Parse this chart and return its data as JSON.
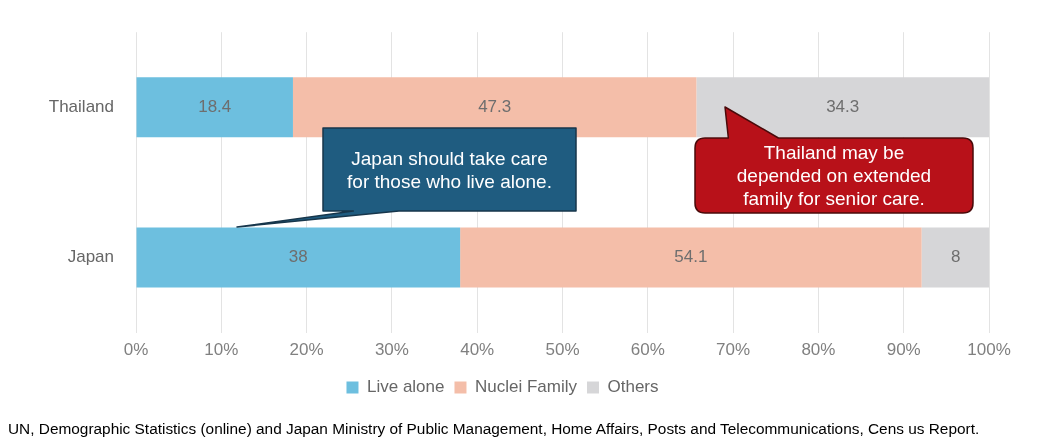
{
  "chart_data": {
    "type": "bar",
    "orientation": "horizontal",
    "stacked": true,
    "categories": [
      "Thailand",
      "Japan"
    ],
    "series": [
      {
        "name": "Live alone",
        "color": "#6dbfdf",
        "values": [
          18.4,
          38
        ]
      },
      {
        "name": "Nuclei Family",
        "color": "#f4bea9",
        "values": [
          47.3,
          54.1
        ]
      },
      {
        "name": "Others",
        "color": "#d6d6d8",
        "values": [
          34.3,
          8
        ]
      }
    ],
    "xlim": [
      0,
      100
    ],
    "xticks": [
      {
        "value": 0,
        "label": "0%"
      },
      {
        "value": 10,
        "label": "10%"
      },
      {
        "value": 20,
        "label": "20%"
      },
      {
        "value": 30,
        "label": "30%"
      },
      {
        "value": 40,
        "label": "40%"
      },
      {
        "value": 50,
        "label": "50%"
      },
      {
        "value": 60,
        "label": "60%"
      },
      {
        "value": 70,
        "label": "70%"
      },
      {
        "value": 80,
        "label": "80%"
      },
      {
        "value": 90,
        "label": "90%"
      },
      {
        "value": 100,
        "label": "100%"
      }
    ],
    "grid": "x",
    "legend": "bottom",
    "data_labels": true,
    "annotations": [
      "Japan should take care\nfor those who live alone.",
      "Thailand may be\ndepended on extended\nfamily for senior care.",
      "UN, Demographic Statistics (online) and Japan Ministry of Public Management, Home Affairs, Posts and Telecommunications, Cens us Report."
    ]
  }
}
